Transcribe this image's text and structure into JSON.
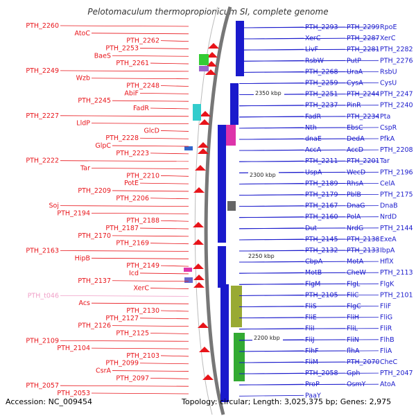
{
  "title": "Pelotomaculum thermopropionicum SI, complete genome",
  "footer": {
    "accession": "Accession: NC_009454",
    "summary": "Topology: circular; Length: 3,025,375 bp; Genes: 2,975"
  },
  "colors": {
    "forward_strand": "#e8141a",
    "reverse_strand": "#1a1acc",
    "rna_label": "#f0a0c8",
    "backbone": "#777777"
  },
  "kbp_marks": [
    "2350 kbp",
    "2300 kbp",
    "2250 kbp",
    "2200 kbp"
  ],
  "left_labels": [
    "PTH_2260",
    "AtoC",
    "PTH_2262",
    "PTH_2253",
    "BaeS",
    "PTH_2261",
    "PTH_2249",
    "Wzb",
    "PTH_2248",
    "AbiF",
    "PTH_2245",
    "FadR",
    "PTH_2227",
    "LldP",
    "GlcD",
    "PTH_2228",
    "GlpC",
    "PTH_2223",
    "PTH_2222",
    "Tar",
    "PTH_2210",
    "PotE",
    "PTH_2209",
    "PTH_2206",
    "Soj",
    "PTH_2194",
    "PTH_2188",
    "PTH_2187",
    "PTH_2170",
    "PTH_2169",
    "PTH_2163",
    "HipB",
    "PTH_2149",
    "Icd",
    "PTH_2137",
    "XerC",
    "PTH_t046",
    "Acs",
    "PTH_2130",
    "PTH_2127",
    "PTH_2126",
    "PTH_2125",
    "PTH_2109",
    "PTH_2104",
    "PTH_2103",
    "PTH_2099",
    "CsrA",
    "PTH_2097",
    "PTH_2057",
    "PTH_2053"
  ],
  "right_labels": [
    "PTH_2293",
    "PTH_2299",
    "RpoE",
    "XerC",
    "PTH_2287",
    "XerC",
    "LivF",
    "PTH_2281",
    "PTH_2282",
    "RsbW",
    "PutP",
    "PTH_2276",
    "PTH_2268",
    "UraA",
    "RsbU",
    "PTH_2259",
    "CysA",
    "CysU",
    "PTH_2251",
    "PTH_2244",
    "PTH_2247",
    "PTH_2237",
    "PinR",
    "PTH_2240",
    "FadR",
    "PTH_2234",
    "Pta",
    "Nth",
    "EbsC",
    "CspR",
    "dnaE",
    "DedA",
    "PfkA",
    "AccA",
    "AccD",
    "PTH_2208",
    "PTH_2211",
    "PTH_2201",
    "Tar",
    "UspA",
    "WecD",
    "PTH_2196",
    "PTH_2189",
    "RhsA",
    "CelA",
    "PTH_2179",
    "PblB",
    "PTH_2175",
    "PTH_2167",
    "DnaG",
    "DnaB",
    "PTH_2160",
    "PolA",
    "NrdD",
    "Dut",
    "NrdG",
    "PTH_2144",
    "PTH_2145",
    "PTH_2138",
    "ExeA",
    "PTH_2132",
    "PTH_2133",
    "IbpA",
    "CbpA",
    "MotA",
    "HflX",
    "MotB",
    "CheW",
    "PTH_2113",
    "FlgM",
    "FlgL",
    "FlgK",
    "PTH_2105",
    "FliC",
    "PTH_2101",
    "FliS",
    "FlgC",
    "FliF",
    "FliE",
    "FliH",
    "FliG",
    "FliI",
    "FliL",
    "FliR",
    "FliJ",
    "FliN",
    "FlhB",
    "FlhF",
    "flhA",
    "FliA",
    "FliM",
    "PTH_2070",
    "CheC",
    "PTH_2058",
    "Gph",
    "PTH_2047",
    "ProP",
    "OsmY",
    "AtoA",
    "PaaY"
  ]
}
